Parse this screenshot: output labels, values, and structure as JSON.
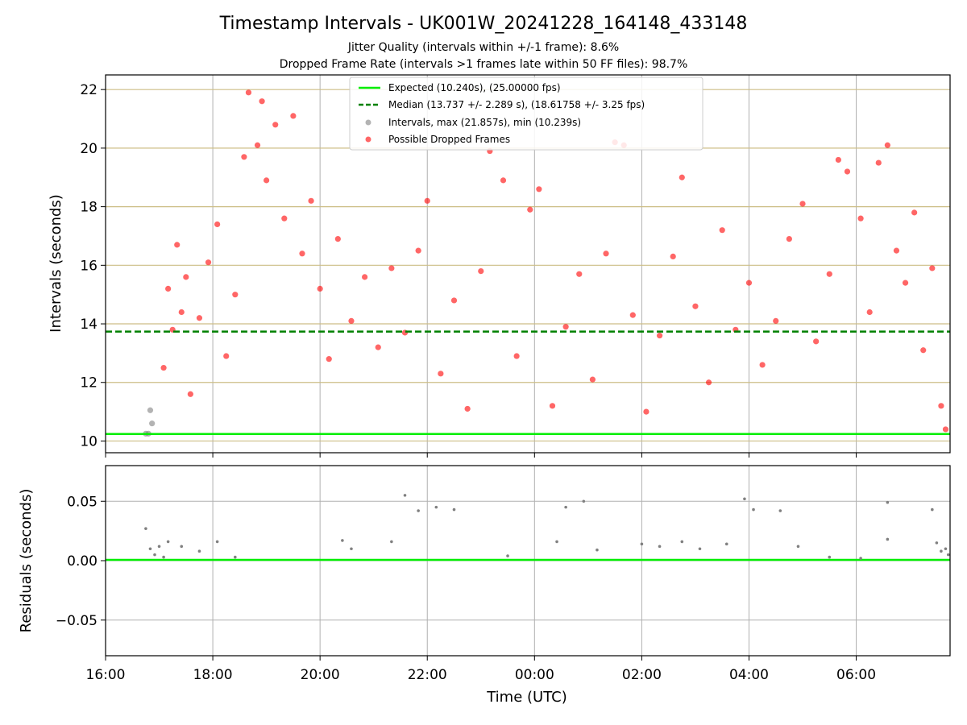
{
  "chart_data": [
    {
      "type": "scatter",
      "panel": "intervals",
      "title": "Timestamp Intervals - UK001W_20241228_164148_433148",
      "subtitle_1": "Jitter Quality (intervals within +/-1 frame): 8.6%",
      "subtitle_2": "Dropped Frame Rate (intervals >1 frames late within 50 FF files): 98.7%",
      "ylabel": "Intervals (seconds)",
      "xlim": [
        "16:00",
        "07:45"
      ],
      "ylim": [
        9.6,
        22.5
      ],
      "y_ticks": [
        "10",
        "12",
        "14",
        "16",
        "18",
        "20",
        "22"
      ],
      "grid": true,
      "legend_position": "top-center",
      "expected_interval": 10.24,
      "median_interval": 13.737,
      "series": [
        {
          "name": "Expected (10.240s), (25.00000 fps)",
          "kind": "line",
          "color": "#00ee00",
          "value": 10.24
        },
        {
          "name": "Median (13.737 +/- 2.289 s), (18.61758 +/- 3.25 fps)",
          "kind": "dashed-line",
          "color": "#008000",
          "value": 13.737
        },
        {
          "name": "Intervals, max (21.857s), min (10.239s)",
          "kind": "points",
          "color": "#808080",
          "max": 21.857,
          "min": 10.239,
          "points": [
            [
              "16:45",
              10.25
            ],
            [
              "16:48",
              10.25
            ],
            [
              "16:50",
              11.05
            ],
            [
              "16:52",
              10.6
            ]
          ]
        },
        {
          "name": "Possible Dropped Frames",
          "kind": "points",
          "color": "#ff0000",
          "points": [
            [
              "17:05",
              12.5
            ],
            [
              "17:10",
              15.2
            ],
            [
              "17:15",
              13.8
            ],
            [
              "17:20",
              16.7
            ],
            [
              "17:25",
              14.4
            ],
            [
              "17:30",
              15.6
            ],
            [
              "17:35",
              11.6
            ],
            [
              "17:45",
              14.2
            ],
            [
              "17:55",
              16.1
            ],
            [
              "18:05",
              17.4
            ],
            [
              "18:15",
              12.9
            ],
            [
              "18:25",
              15.0
            ],
            [
              "18:35",
              19.7
            ],
            [
              "18:40",
              21.9
            ],
            [
              "18:50",
              20.1
            ],
            [
              "18:55",
              21.6
            ],
            [
              "19:00",
              18.9
            ],
            [
              "19:10",
              20.8
            ],
            [
              "19:20",
              17.6
            ],
            [
              "19:30",
              21.1
            ],
            [
              "19:40",
              16.4
            ],
            [
              "19:50",
              18.2
            ],
            [
              "20:00",
              15.2
            ],
            [
              "20:10",
              12.8
            ],
            [
              "20:20",
              16.9
            ],
            [
              "20:35",
              14.1
            ],
            [
              "20:50",
              15.6
            ],
            [
              "21:05",
              13.2
            ],
            [
              "21:20",
              15.9
            ],
            [
              "21:35",
              13.7
            ],
            [
              "21:50",
              16.5
            ],
            [
              "22:00",
              18.2
            ],
            [
              "22:15",
              12.3
            ],
            [
              "22:30",
              14.8
            ],
            [
              "22:45",
              11.1
            ],
            [
              "23:00",
              15.8
            ],
            [
              "23:10",
              19.9
            ],
            [
              "23:25",
              18.9
            ],
            [
              "23:40",
              12.9
            ],
            [
              "23:55",
              17.9
            ],
            [
              "00:05",
              18.6
            ],
            [
              "00:20",
              11.2
            ],
            [
              "00:35",
              13.9
            ],
            [
              "00:50",
              15.7
            ],
            [
              "01:05",
              12.1
            ],
            [
              "01:20",
              16.4
            ],
            [
              "01:30",
              20.2
            ],
            [
              "01:40",
              20.1
            ],
            [
              "01:50",
              14.3
            ],
            [
              "02:05",
              11.0
            ],
            [
              "02:20",
              13.6
            ],
            [
              "02:35",
              16.3
            ],
            [
              "02:45",
              19.0
            ],
            [
              "03:00",
              14.6
            ],
            [
              "03:15",
              12.0
            ],
            [
              "03:30",
              17.2
            ],
            [
              "03:45",
              13.8
            ],
            [
              "04:00",
              15.4
            ],
            [
              "04:15",
              12.6
            ],
            [
              "04:30",
              14.1
            ],
            [
              "04:45",
              16.9
            ],
            [
              "05:00",
              18.1
            ],
            [
              "05:15",
              13.4
            ],
            [
              "05:30",
              15.7
            ],
            [
              "05:40",
              19.6
            ],
            [
              "05:50",
              19.2
            ],
            [
              "06:05",
              17.6
            ],
            [
              "06:15",
              14.4
            ],
            [
              "06:25",
              19.5
            ],
            [
              "06:35",
              20.1
            ],
            [
              "06:45",
              16.5
            ],
            [
              "06:55",
              15.4
            ],
            [
              "07:05",
              17.8
            ],
            [
              "07:15",
              13.1
            ],
            [
              "07:25",
              15.9
            ],
            [
              "07:35",
              11.2
            ],
            [
              "07:40",
              10.4
            ]
          ]
        }
      ]
    },
    {
      "type": "scatter",
      "panel": "residuals",
      "ylabel": "Residuals (seconds)",
      "xlabel": "Time (UTC)",
      "x_ticks": [
        "16:00",
        "18:00",
        "20:00",
        "22:00",
        "00:00",
        "02:00",
        "04:00",
        "06:00"
      ],
      "y_ticks": [
        "0.05",
        "0.00",
        "−0.05"
      ],
      "xlim": [
        "16:00",
        "07:45"
      ],
      "ylim": [
        -0.08,
        0.08
      ],
      "grid": true,
      "zero_line_color": "#00ee00",
      "series": [
        {
          "name": "",
          "color": "#808080",
          "points": [
            [
              "16:45",
              0.027
            ],
            [
              "16:50",
              0.01
            ],
            [
              "16:55",
              0.005
            ],
            [
              "17:00",
              0.012
            ],
            [
              "17:05",
              0.003
            ],
            [
              "17:10",
              0.016
            ],
            [
              "17:25",
              0.012
            ],
            [
              "17:45",
              0.008
            ],
            [
              "18:05",
              0.016
            ],
            [
              "18:25",
              0.003
            ],
            [
              "20:25",
              0.017
            ],
            [
              "20:35",
              0.01
            ],
            [
              "21:20",
              0.016
            ],
            [
              "21:35",
              0.055
            ],
            [
              "21:50",
              0.042
            ],
            [
              "22:10",
              0.045
            ],
            [
              "22:30",
              0.043
            ],
            [
              "23:30",
              0.004
            ],
            [
              "00:25",
              0.016
            ],
            [
              "00:35",
              0.045
            ],
            [
              "00:55",
              0.05
            ],
            [
              "01:10",
              0.009
            ],
            [
              "02:00",
              0.014
            ],
            [
              "02:20",
              0.012
            ],
            [
              "02:45",
              0.016
            ],
            [
              "03:05",
              0.01
            ],
            [
              "03:35",
              0.014
            ],
            [
              "03:55",
              0.052
            ],
            [
              "04:05",
              0.043
            ],
            [
              "04:35",
              0.042
            ],
            [
              "04:55",
              0.012
            ],
            [
              "05:30",
              0.003
            ],
            [
              "06:05",
              0.002
            ],
            [
              "06:35",
              0.049
            ],
            [
              "06:35",
              0.018
            ],
            [
              "07:25",
              0.043
            ],
            [
              "07:30",
              0.015
            ],
            [
              "07:35",
              0.008
            ],
            [
              "07:40",
              0.01
            ],
            [
              "07:43",
              0.005
            ]
          ]
        }
      ]
    }
  ],
  "legend": {
    "expected": "Expected (10.240s), (25.00000 fps)",
    "median": "Median (13.737 +/- 2.289 s), (18.61758 +/- 3.25 fps)",
    "intervals": "Intervals, max (21.857s), min (10.239s)",
    "dropped": "Possible Dropped Frames"
  }
}
